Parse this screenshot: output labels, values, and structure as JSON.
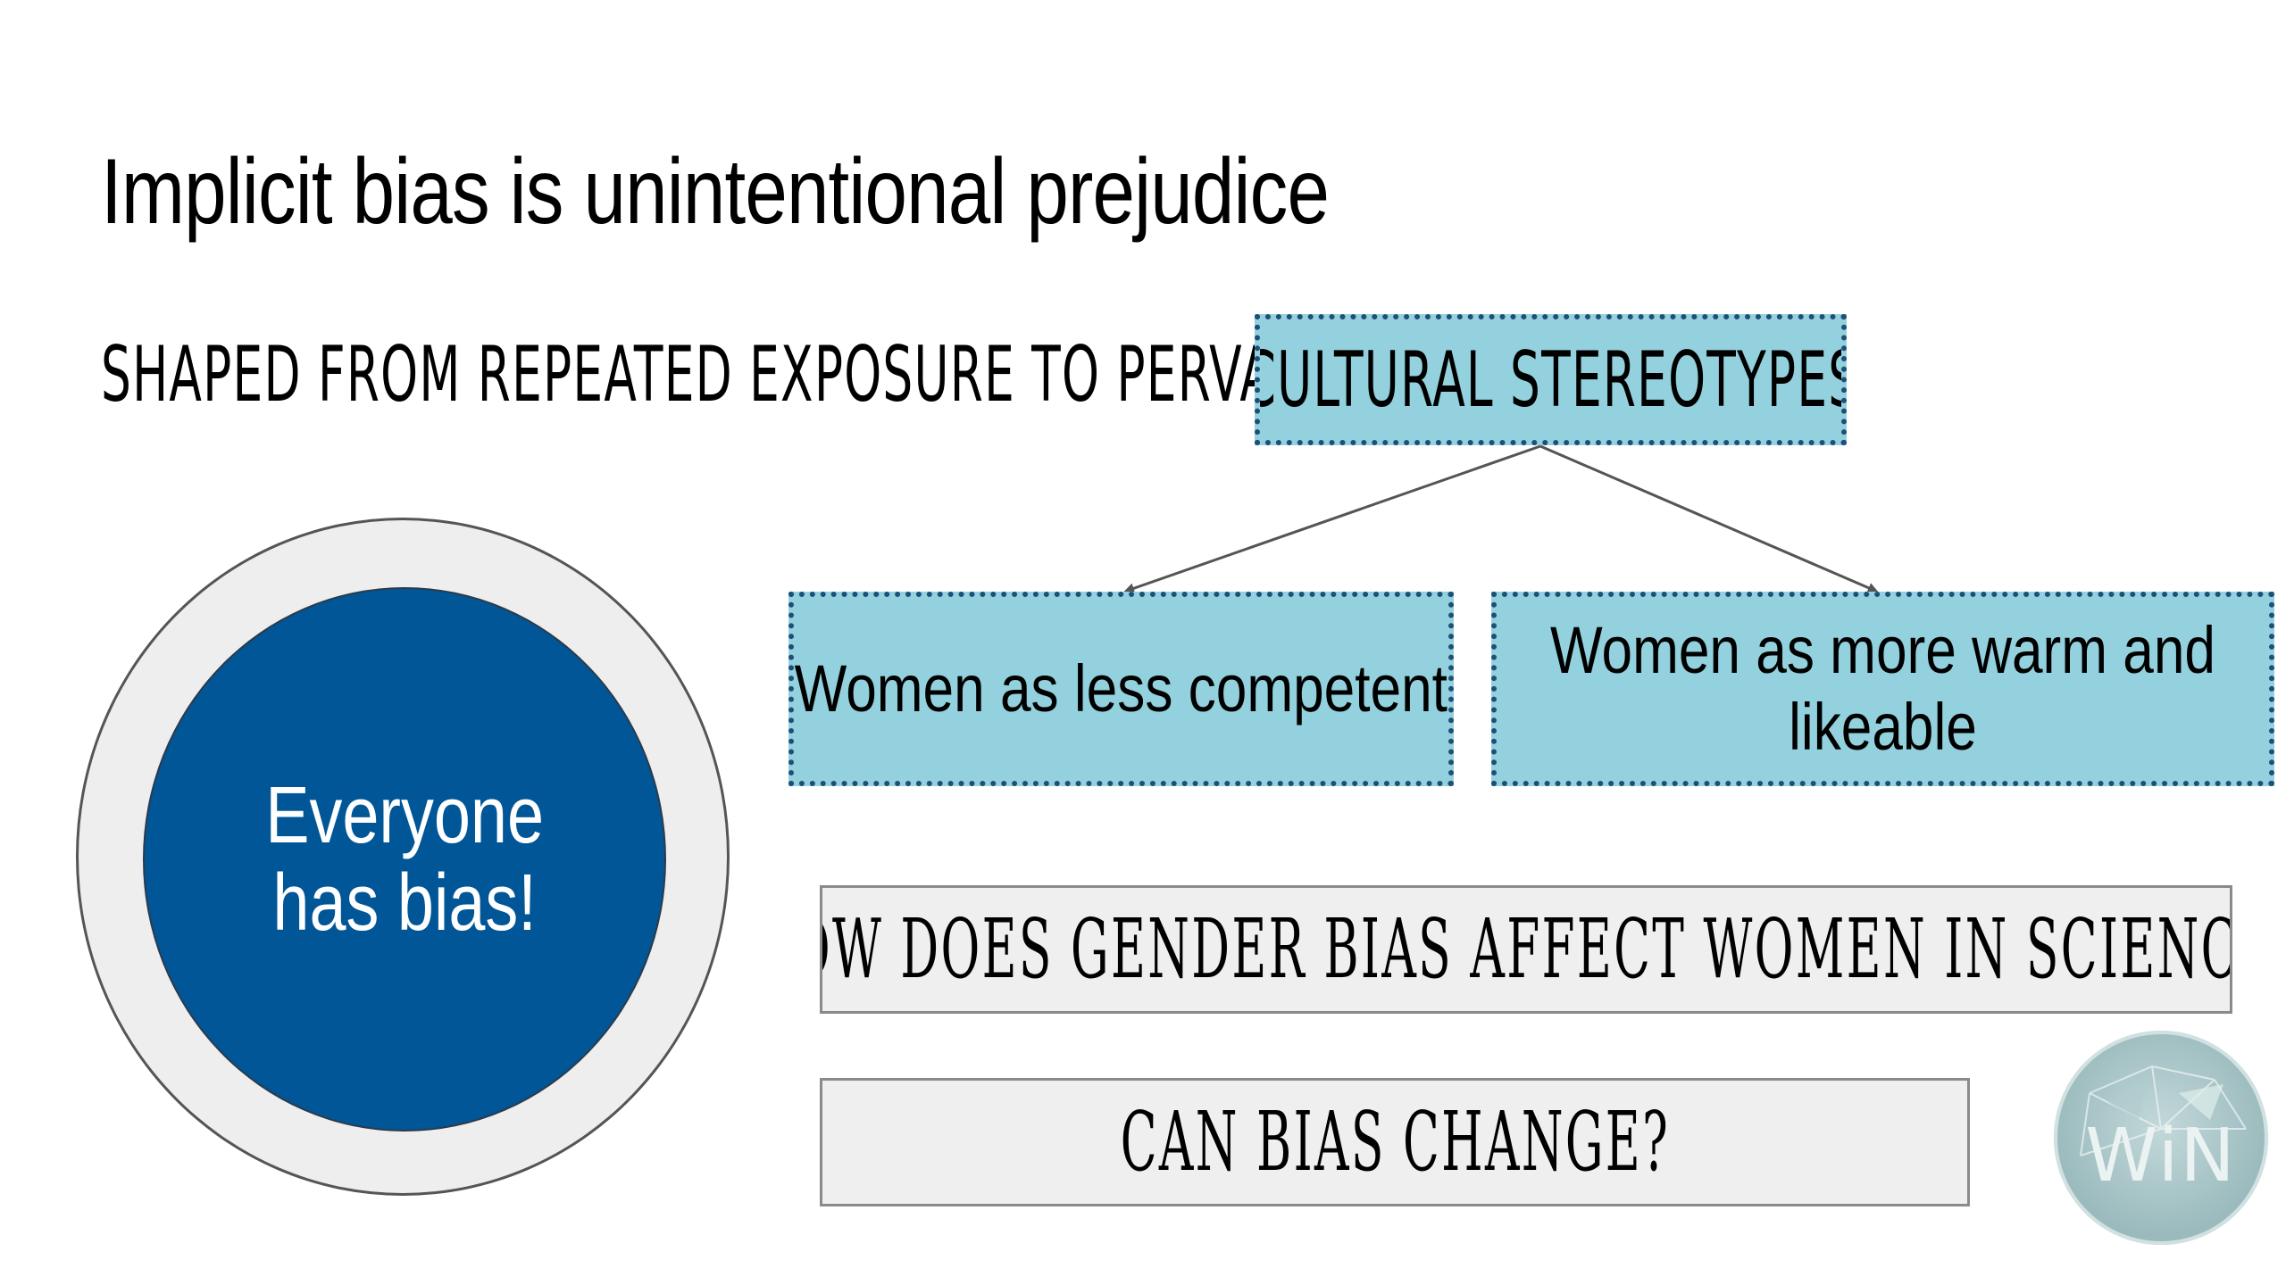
{
  "slide": {
    "title": "Implicit bias is unintentional prejudice",
    "subtitle": "SHAPED FROM REPEATED EXPOSURE TO PERVASIVE",
    "stereotypes_label": "CULTURAL STEREOTYPES",
    "stereotype_1": "Women as less competent",
    "stereotype_2_line1": "Women as more warm and",
    "stereotype_2_line2": "likeable",
    "circle_line1": "Everyone",
    "circle_line2": "has bias!",
    "question_1": "HOW DOES GENDER BIAS AFFECT WOMEN IN SCIENCE?",
    "question_2": "CAN BIAS CHANGE?",
    "logo_text": "WiN"
  },
  "colors": {
    "teal": "#92d1dd",
    "dotted_border": "#1f4e79",
    "circle_blue": "#015697",
    "gray_box": "#efefef"
  }
}
